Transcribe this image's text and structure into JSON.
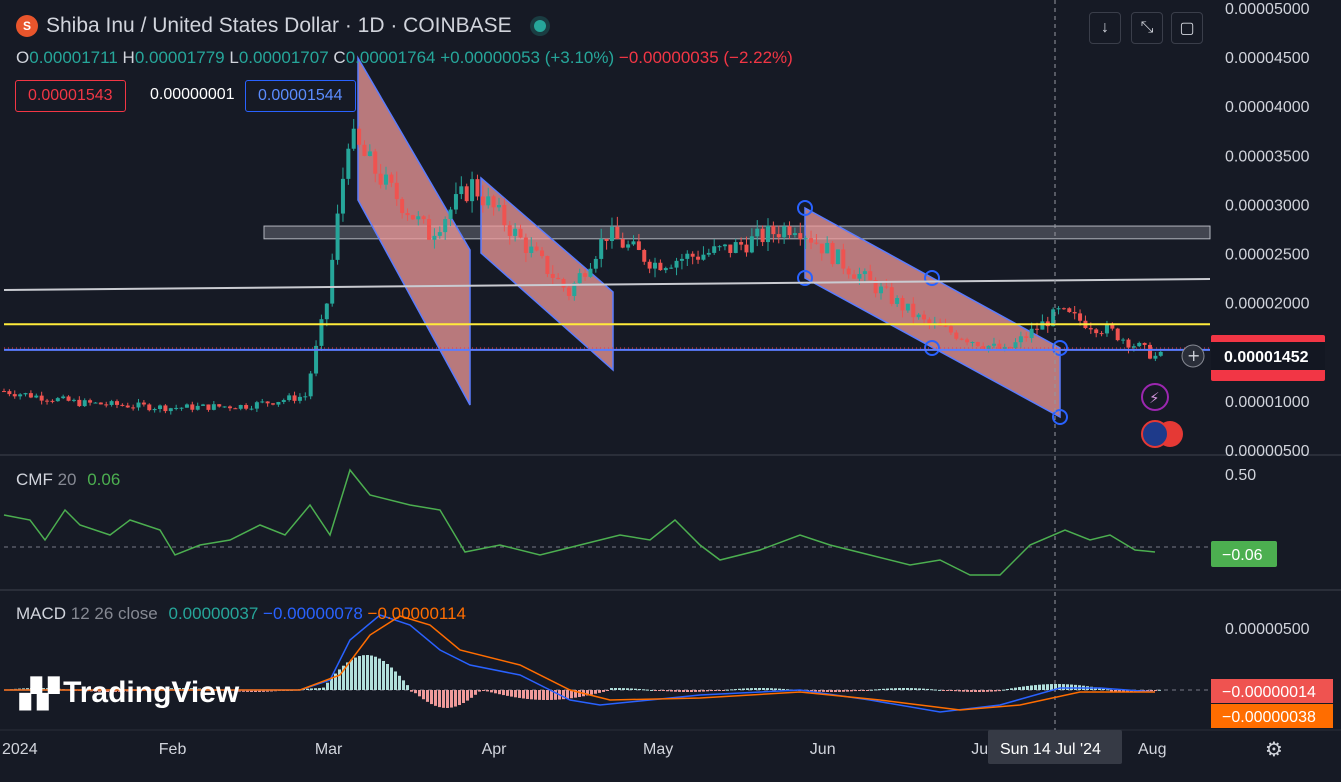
{
  "header": {
    "title": "Shiba Inu / United States Dollar · 1D · COINBASE",
    "logo_text": "S"
  },
  "ohlc": {
    "o_label": "O",
    "o": "0.00001711",
    "h_label": "H",
    "h": "0.00001779",
    "l_label": "L",
    "l": "0.00001707",
    "c_label": "C",
    "c": "0.00001764",
    "change": "+0.00000053 (+3.10%)",
    "change2": "−0.00000035 (−2.22%)"
  },
  "price_boxes": {
    "sell": "0.00001543",
    "spread": "0.00000001",
    "buy": "0.00001544"
  },
  "toolbar": {
    "down_icon": "arrow-down-icon",
    "collapse_icon": "collapse-icon",
    "screenshot_icon": "fullscreen-icon"
  },
  "axis_right": {
    "price_ticks": [
      "0.00005000",
      "0.00004500",
      "0.00004000",
      "0.00003500",
      "0.00003000",
      "0.00002500",
      "0.00002000",
      "0.00001500",
      "0.00001000",
      "0.00000500"
    ],
    "current_price": "0.00001452",
    "cmf_ticks": [
      "0.50"
    ],
    "cmf_value": "−0.06",
    "macd_ticks": [
      "0.00000500"
    ],
    "macd_value1": "−0.00000014",
    "macd_value2": "−0.00000038"
  },
  "axis_bottom": {
    "months": [
      "2024",
      "Feb",
      "Mar",
      "Apr",
      "May",
      "Jun",
      "Jul",
      "Aug"
    ],
    "crosshair_label": "Sun 14 Jul '24"
  },
  "indicators": {
    "cmf": {
      "name": "CMF",
      "param": "20",
      "value": "0.06"
    },
    "macd": {
      "name": "MACD",
      "param": "12 26 close",
      "v1": "0.00000037",
      "v2": "−0.00000078",
      "v3": "−0.00000114"
    }
  },
  "branding": {
    "logo_text": "TradingView"
  },
  "colors": {
    "up": "#26a69a",
    "down": "#ef5350",
    "bg": "#161a25",
    "cmf": "#4caf50",
    "macd": "#2962ff",
    "signal": "#ff6d00"
  },
  "chart_data": {
    "type": "candlestick",
    "symbol": "Shiba Inu / United States Dollar",
    "timeframe": "1D",
    "x_range": [
      "2024-01-01",
      "2024-08-05"
    ],
    "ylim": [
      5e-06,
      5e-05
    ],
    "close_series": [
      {
        "date": "2024-01-01",
        "close": 1.1e-05
      },
      {
        "date": "2024-01-15",
        "close": 9.8e-06
      },
      {
        "date": "2024-02-01",
        "close": 9.3e-06
      },
      {
        "date": "2024-02-15",
        "close": 9.5e-06
      },
      {
        "date": "2024-02-26",
        "close": 1.05e-05
      },
      {
        "date": "2024-03-01",
        "close": 2e-05
      },
      {
        "date": "2024-03-05",
        "close": 3.7e-05
      },
      {
        "date": "2024-03-12",
        "close": 3.2e-05
      },
      {
        "date": "2024-03-20",
        "close": 2.7e-05
      },
      {
        "date": "2024-03-28",
        "close": 3.2e-05
      },
      {
        "date": "2024-04-05",
        "close": 2.7e-05
      },
      {
        "date": "2024-04-15",
        "close": 2.1e-05
      },
      {
        "date": "2024-04-22",
        "close": 2.7e-05
      },
      {
        "date": "2024-05-01",
        "close": 2.4e-05
      },
      {
        "date": "2024-05-15",
        "close": 2.55e-05
      },
      {
        "date": "2024-05-27",
        "close": 2.8e-05
      },
      {
        "date": "2024-06-05",
        "close": 2.4e-05
      },
      {
        "date": "2024-06-20",
        "close": 1.8e-05
      },
      {
        "date": "2024-07-05",
        "close": 1.5e-05
      },
      {
        "date": "2024-07-15",
        "close": 1.9e-05
      },
      {
        "date": "2024-07-25",
        "close": 1.7e-05
      },
      {
        "date": "2024-08-02",
        "close": 1.45e-05
      }
    ],
    "horizontal_levels": [
      {
        "name": "resistance zone",
        "range": [
          2.65e-05,
          2.78e-05
        ]
      },
      {
        "name": "yellow line",
        "value": 1.78e-05
      },
      {
        "name": "blue line",
        "value": 1.52e-05
      }
    ],
    "cmf": {
      "name": "CMF 20",
      "last": 0.06
    },
    "macd": {
      "name": "MACD 12 26 close",
      "histogram_last": 3.7e-07,
      "macd_last": -7.8e-07,
      "signal_last": -1.14e-06
    }
  }
}
